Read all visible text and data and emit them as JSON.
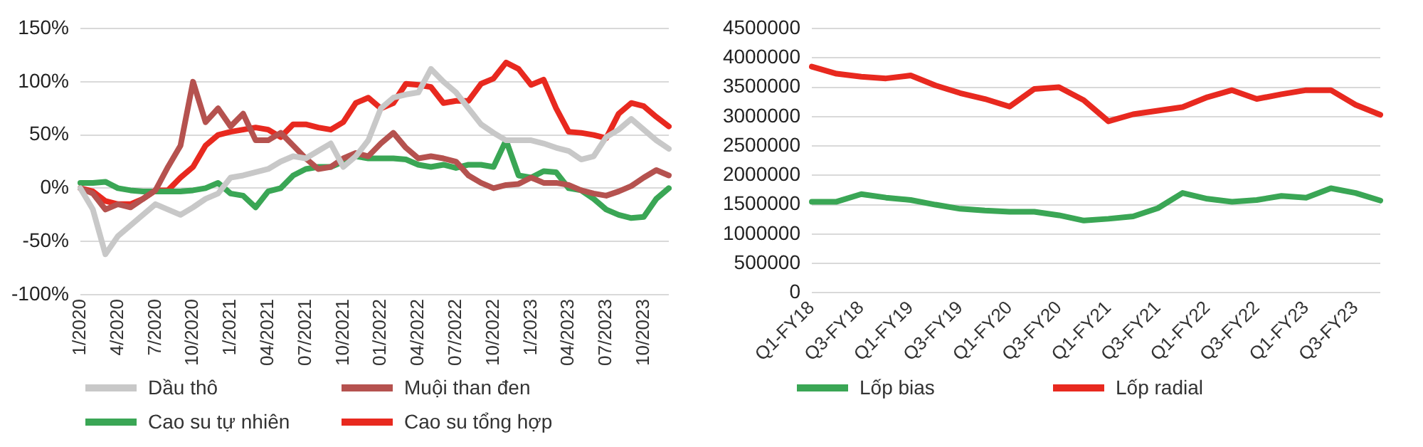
{
  "chart_data": [
    {
      "type": "line",
      "categories": [
        "1/2020",
        null,
        null,
        "4/2020",
        null,
        null,
        "7/2020",
        null,
        null,
        "10/2020",
        null,
        null,
        "1/2021",
        null,
        null,
        "04/2021",
        null,
        null,
        "07/2021",
        null,
        null,
        "10/2021",
        null,
        null,
        "01/2022",
        null,
        null,
        "04/2022",
        null,
        null,
        "07/2022",
        null,
        null,
        "10/2022",
        null,
        null,
        "1/2023",
        null,
        null,
        "04/2023",
        null,
        null,
        "07/2023",
        null,
        null,
        "10/2023",
        null,
        null
      ],
      "series": [
        {
          "name": "Dầu thô",
          "color": "#c8c8c8",
          "values": [
            0,
            -20,
            -62,
            -45,
            -35,
            -25,
            -15,
            -20,
            -25,
            -18,
            -10,
            -5,
            10,
            12,
            15,
            18,
            25,
            30,
            28,
            35,
            42,
            20,
            30,
            45,
            75,
            85,
            88,
            90,
            112,
            100,
            90,
            75,
            60,
            52,
            45,
            45,
            45,
            42,
            38,
            35,
            27,
            30,
            48,
            55,
            65,
            55,
            45,
            37
          ]
        },
        {
          "name": "Muội than đen",
          "color": "#b5524f",
          "values": [
            0,
            -5,
            -20,
            -15,
            -18,
            -10,
            -2,
            20,
            40,
            100,
            62,
            75,
            58,
            70,
            45,
            45,
            52,
            40,
            28,
            18,
            20,
            28,
            33,
            30,
            42,
            52,
            38,
            28,
            30,
            28,
            25,
            12,
            5,
            0,
            3,
            4,
            10,
            5,
            5,
            3,
            -2,
            -5,
            -7,
            -3,
            2,
            10,
            17,
            12
          ]
        },
        {
          "name": "Cao su tự nhiên",
          "color": "#3aa655",
          "values": [
            5,
            5,
            6,
            0,
            -2,
            -3,
            -3,
            -3,
            -3,
            -2,
            0,
            5,
            -5,
            -7,
            -18,
            -3,
            0,
            12,
            18,
            20,
            20,
            25,
            30,
            28,
            28,
            28,
            27,
            22,
            20,
            22,
            19,
            22,
            22,
            20,
            45,
            12,
            10,
            16,
            15,
            0,
            -2,
            -10,
            -20,
            -25,
            -28,
            -27,
            -10,
            0
          ]
        },
        {
          "name": "Cao su tổng hợp",
          "color": "#e8291f",
          "values": [
            0,
            -3,
            -12,
            -15,
            -15,
            -10,
            -2,
            -2,
            10,
            20,
            40,
            50,
            53,
            55,
            57,
            55,
            48,
            60,
            60,
            57,
            55,
            62,
            80,
            85,
            75,
            80,
            98,
            97,
            95,
            80,
            82,
            82,
            98,
            103,
            118,
            112,
            97,
            102,
            75,
            53,
            52,
            50,
            47,
            70,
            80,
            77,
            67,
            58
          ]
        }
      ],
      "ylim": [
        -100,
        150
      ],
      "yticks": [
        {
          "value": -100,
          "label": "-100%"
        },
        {
          "value": -50,
          "label": "-50%"
        },
        {
          "value": 0,
          "label": "0%"
        },
        {
          "value": 50,
          "label": "50%"
        },
        {
          "value": 100,
          "label": "100%"
        },
        {
          "value": 150,
          "label": "150%"
        }
      ],
      "grid": "y",
      "legend": "bottom",
      "line_style": "solid",
      "marker": "none"
    },
    {
      "type": "line",
      "categories": [
        "Q1-FY18",
        null,
        "Q3-FY18",
        null,
        "Q1-FY19",
        null,
        "Q3-FY19",
        null,
        "Q1-FY20",
        null,
        "Q3-FY20",
        null,
        "Q1-FY21",
        null,
        "Q3-FY21",
        null,
        "Q1-FY22",
        null,
        "Q3-FY22",
        null,
        "Q1-FY23",
        null,
        "Q3-FY23",
        null
      ],
      "series": [
        {
          "name": "Lốp bias",
          "color": "#3aa655",
          "values": [
            1550000,
            1550000,
            1680000,
            1620000,
            1580000,
            1500000,
            1430000,
            1400000,
            1380000,
            1380000,
            1320000,
            1230000,
            1260000,
            1300000,
            1440000,
            1700000,
            1600000,
            1550000,
            1580000,
            1650000,
            1620000,
            1780000,
            1700000,
            1570000
          ]
        },
        {
          "name": "Lốp radial",
          "color": "#e8291f",
          "values": [
            3850000,
            3730000,
            3680000,
            3650000,
            3700000,
            3530000,
            3400000,
            3300000,
            3170000,
            3470000,
            3500000,
            3280000,
            2920000,
            3040000,
            3100000,
            3160000,
            3330000,
            3450000,
            3300000,
            3380000,
            3450000,
            3450000,
            3200000,
            3030000
          ]
        }
      ],
      "ylim": [
        0,
        4500000
      ],
      "yticks": [
        0,
        500000,
        1000000,
        1500000,
        2000000,
        2500000,
        3000000,
        3500000,
        4000000,
        4500000
      ],
      "grid": "y",
      "legend": "bottom",
      "line_style": "solid",
      "marker": "none"
    }
  ]
}
